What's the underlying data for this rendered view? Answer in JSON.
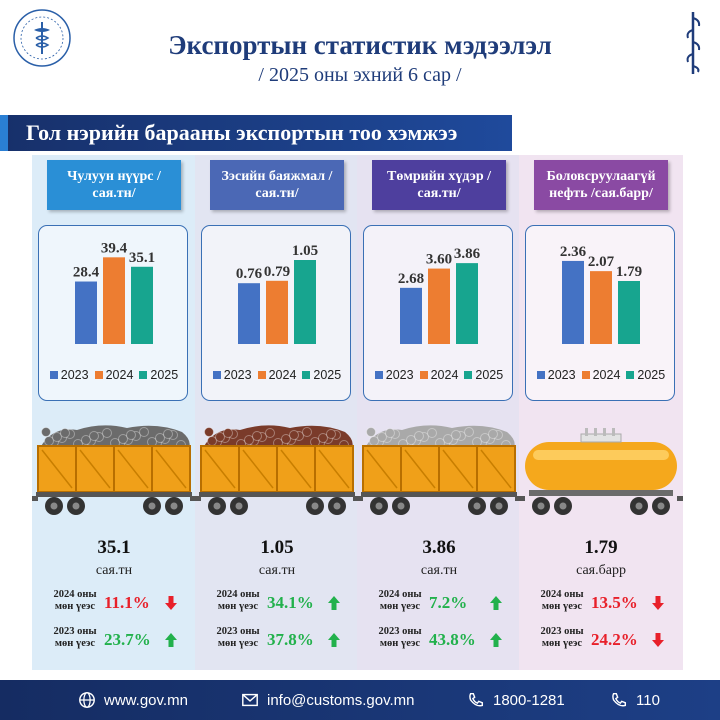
{
  "header": {
    "title": "Экспортын статистик мэдээлэл",
    "subtitle": "/ 2025 оны эхний 6 сар /"
  },
  "banner": {
    "title": "Гол нэрийн барааны экспортын тоо хэмжээ"
  },
  "colors": {
    "bar_2023": "#4472c4",
    "bar_2024": "#ed7d31",
    "bar_2025": "#17a58f",
    "up": "#22b14c",
    "down": "#e8202a",
    "banner": "#1b3a80",
    "title": "#1f3c7a"
  },
  "legend": [
    "2023",
    "2024",
    "2025"
  ],
  "commodities": [
    {
      "label": "Чулуун нүүрс /сая.тн/",
      "label_color": "#2a8fd6",
      "bg": "#dcecf8",
      "value": "35.1",
      "unit": "сая.тн",
      "cmp_2024_label": "2024 оны мөн үеэс",
      "cmp_2024_pct": "11.1%",
      "cmp_2024_dir": "down",
      "cmp_2023_label": "2023 оны мөн үеэс",
      "cmp_2023_pct": "23.7%",
      "cmp_2023_dir": "up",
      "cargo": "coal",
      "cargo_color": "#6b6b6b"
    },
    {
      "label": "Зэсийн баяжмал /сая.тн/",
      "label_color": "#4b68b5",
      "bg": "#e2e5f2",
      "value": "1.05",
      "unit": "сая.тн",
      "cmp_2024_label": "2024 оны мөн үеэс",
      "cmp_2024_pct": "34.1%",
      "cmp_2024_dir": "up",
      "cmp_2023_label": "2023 оны мөн үеэс",
      "cmp_2023_pct": "37.8%",
      "cmp_2023_dir": "up",
      "cargo": "copper",
      "cargo_color": "#7a3b2a"
    },
    {
      "label": "Төмрийн хүдэр /сая.тн/",
      "label_color": "#4e3f9e",
      "bg": "#e6e2f1",
      "value": "3.86",
      "unit": "сая.тн",
      "cmp_2024_label": "2024 оны мөн үеэс",
      "cmp_2024_pct": "7.2%",
      "cmp_2024_dir": "up",
      "cmp_2023_label": "2023 оны мөн үеэс",
      "cmp_2023_pct": "43.8%",
      "cmp_2023_dir": "up",
      "cargo": "iron",
      "cargo_color": "#a9a9a9"
    },
    {
      "label": "Боловсруулаагүй нефть /сая.барр/",
      "label_color": "#8a4aa3",
      "bg": "#f1e4f1",
      "value": "1.79",
      "unit": "сая.барр",
      "cmp_2024_label": "2024 оны мөн үеэс",
      "cmp_2024_pct": "13.5%",
      "cmp_2024_dir": "down",
      "cmp_2023_label": "2023 оны мөн үеэс",
      "cmp_2023_pct": "24.2%",
      "cmp_2023_dir": "down",
      "cargo": "tank",
      "cargo_color": "#f5a81c"
    }
  ],
  "chart_data": [
    {
      "type": "bar",
      "title": "Чулуун нүүрс /сая.тн/",
      "categories": [
        "2023",
        "2024",
        "2025"
      ],
      "values": [
        28.4,
        39.4,
        35.1
      ],
      "labels": [
        "28.4",
        "39.4",
        "35.1"
      ],
      "ylim": [
        0,
        40
      ]
    },
    {
      "type": "bar",
      "title": "Зэсийн баяжмал /сая.тн/",
      "categories": [
        "2023",
        "2024",
        "2025"
      ],
      "values": [
        0.76,
        0.79,
        1.05
      ],
      "labels": [
        "0.76",
        "0.79",
        "1.05"
      ],
      "ylim": [
        0,
        1.1
      ]
    },
    {
      "type": "bar",
      "title": "Төмрийн хүдэр /сая.тн/",
      "categories": [
        "2023",
        "2024",
        "2025"
      ],
      "values": [
        2.68,
        3.6,
        3.86
      ],
      "labels": [
        "2.68",
        "3.60",
        "3.86"
      ],
      "ylim": [
        0,
        4.2
      ]
    },
    {
      "type": "bar",
      "title": "Боловсруулаагүй нефть /сая.барр/",
      "categories": [
        "2023",
        "2024",
        "2025"
      ],
      "values": [
        2.36,
        2.07,
        1.79
      ],
      "labels": [
        "2.36",
        "2.07",
        "1.79"
      ],
      "ylim": [
        0,
        2.5
      ]
    }
  ],
  "footer": {
    "web": "www.gov.mn",
    "email": "info@customs.gov.mn",
    "phone": "1800-1281",
    "hotline": "110"
  }
}
